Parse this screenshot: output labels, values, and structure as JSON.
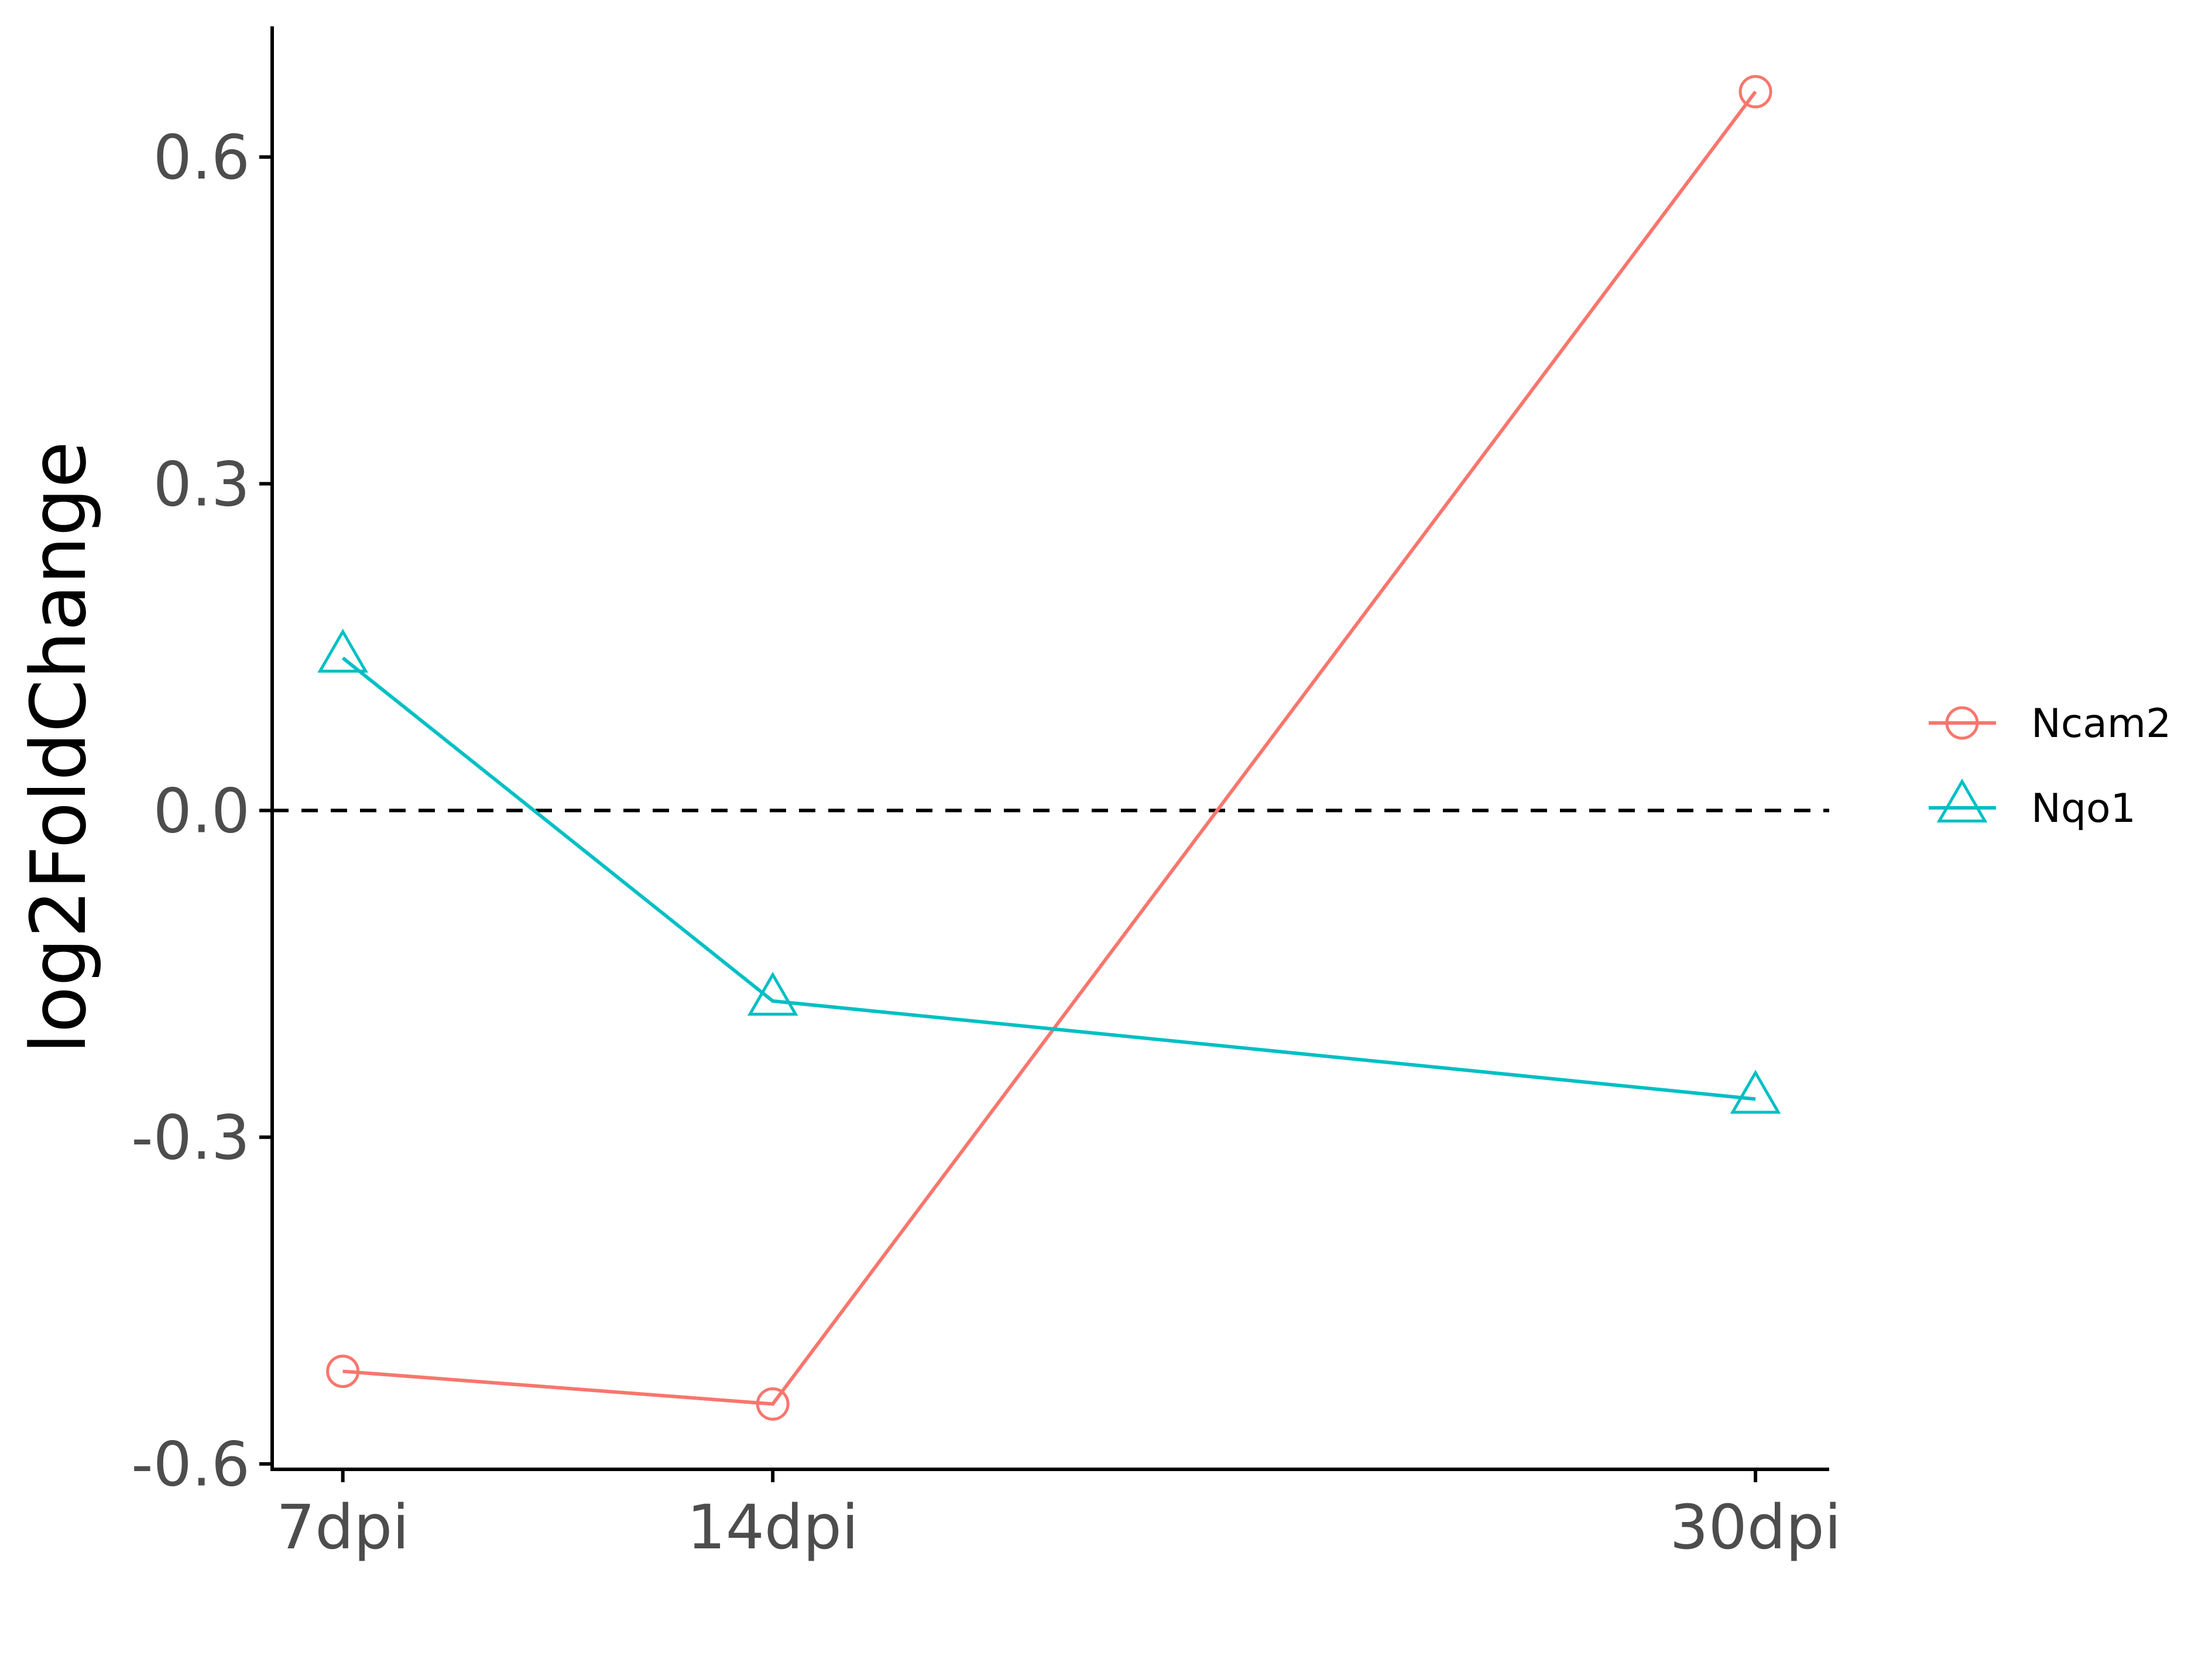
{
  "chart_data": {
    "type": "line",
    "title": "",
    "xlabel": "",
    "ylabel": "log2FoldChange",
    "x": [
      7,
      14,
      30
    ],
    "x_tick_labels": [
      "7dpi",
      "14dpi",
      "30dpi"
    ],
    "xlim": [
      5.85,
      31.2
    ],
    "ylim": [
      -0.605,
      0.72
    ],
    "y_ticks": [
      -0.6,
      -0.3,
      0.0,
      0.3,
      0.6
    ],
    "y_tick_labels": [
      "-0.6",
      "-0.3",
      "0.0",
      "0.3",
      "0.6"
    ],
    "reference_line": {
      "y": 0,
      "style": "dashed"
    },
    "grid": false,
    "legend_position": "right",
    "series": [
      {
        "name": "Ncam2",
        "marker": "circle",
        "color": "#F8766D",
        "values": [
          -0.515,
          -0.545,
          0.66
        ]
      },
      {
        "name": "Nqo1",
        "marker": "triangle",
        "color": "#00BFC4",
        "values": [
          0.14,
          -0.175,
          -0.265
        ]
      }
    ]
  }
}
